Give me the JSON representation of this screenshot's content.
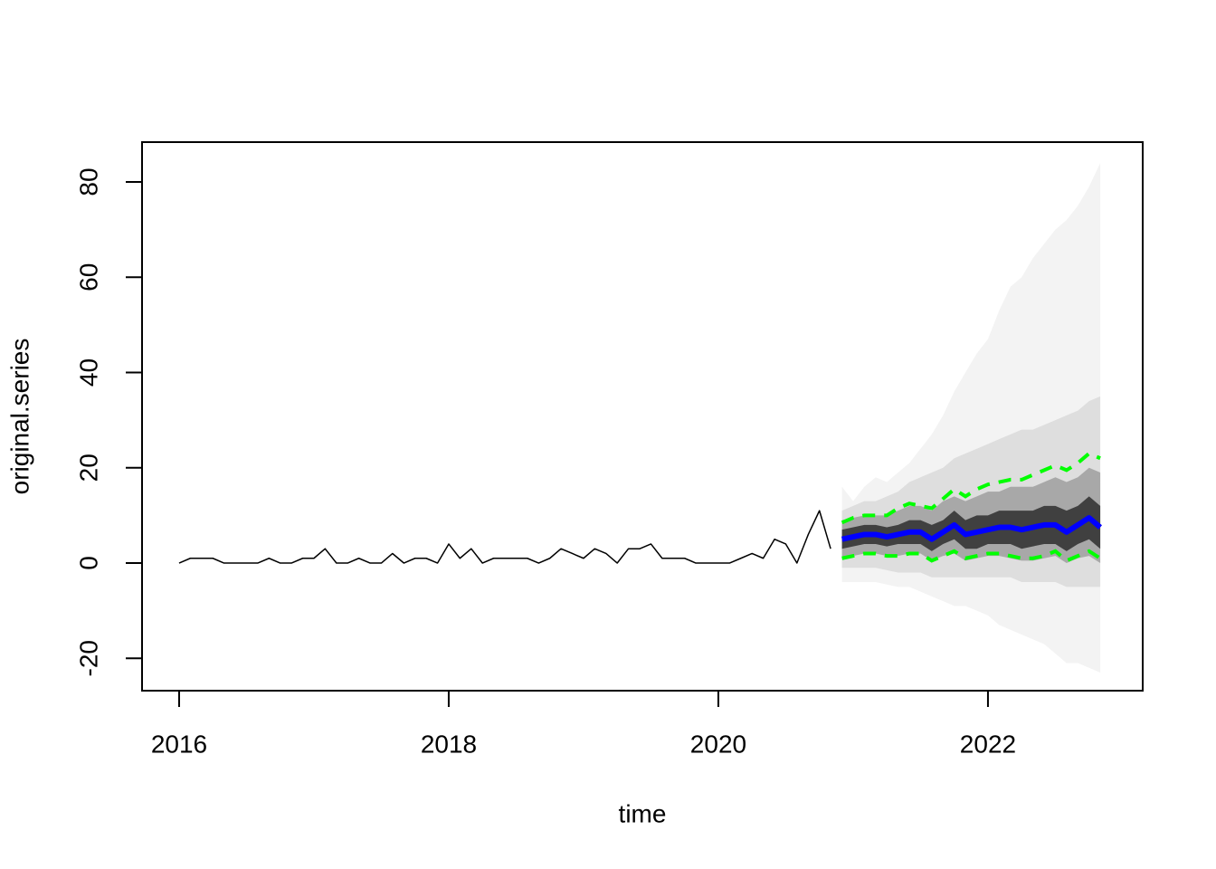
{
  "chart_data": {
    "type": "line",
    "xlabel": "time",
    "ylabel": "original.series",
    "xlim": [
      2015.725,
      2023.148
    ],
    "ylim": [
      -26.79,
      88.36
    ],
    "xticks": [
      2016,
      2018,
      2020,
      2022
    ],
    "yticks": [
      -20,
      0,
      20,
      40,
      60,
      80
    ],
    "series": [
      {
        "color": "#000000",
        "lwd": 1.5,
        "x": [
          2016,
          2016.083,
          2016.167,
          2016.25,
          2016.333,
          2016.417,
          2016.5,
          2016.583,
          2016.667,
          2016.75,
          2016.833,
          2016.917,
          2017,
          2017.083,
          2017.167,
          2017.25,
          2017.333,
          2017.417,
          2017.5,
          2017.583,
          2017.667,
          2017.75,
          2017.833,
          2017.917,
          2018,
          2018.083,
          2018.167,
          2018.25,
          2018.333,
          2018.417,
          2018.5,
          2018.583,
          2018.667,
          2018.75,
          2018.833,
          2018.917,
          2019,
          2019.083,
          2019.167,
          2019.25,
          2019.333,
          2019.417,
          2019.5,
          2019.583,
          2019.667,
          2019.75,
          2019.833,
          2019.917,
          2020,
          2020.083,
          2020.167,
          2020.25,
          2020.333,
          2020.417,
          2020.5,
          2020.583,
          2020.667,
          2020.75,
          2020.833
        ],
        "values": [
          0,
          1,
          1,
          1,
          0,
          0,
          0,
          0,
          1,
          0,
          0,
          1,
          1,
          3,
          0,
          0,
          1,
          0,
          0,
          2,
          0,
          1,
          1,
          0,
          4,
          1,
          3,
          0,
          1,
          1,
          1,
          1,
          0,
          1,
          3,
          2,
          1,
          3,
          2,
          0,
          3,
          3,
          4,
          1,
          1,
          1,
          0,
          0,
          0,
          0,
          1,
          2,
          1,
          5,
          4,
          0,
          6,
          11,
          3
        ]
      }
    ],
    "forecast": {
      "x": [
        2020.917,
        2021,
        2021.083,
        2021.167,
        2021.25,
        2021.333,
        2021.417,
        2021.5,
        2021.583,
        2021.667,
        2021.75,
        2021.833,
        2021.917,
        2022,
        2022.083,
        2022.167,
        2022.25,
        2022.333,
        2022.417,
        2022.5,
        2022.583,
        2022.667,
        2022.75,
        2022.833
      ],
      "bands": [
        {
          "color": "#f3f3f3",
          "upper": [
            16,
            13,
            16,
            18,
            17,
            19,
            21,
            24,
            27,
            31,
            36,
            40,
            44,
            47,
            53,
            58,
            60,
            64,
            67,
            70,
            72,
            75,
            79,
            84
          ],
          "lower": [
            -4,
            -4,
            -4,
            -4,
            -4.5,
            -5,
            -5,
            -6,
            -7,
            -8,
            -9,
            -9,
            -10,
            -11,
            -13,
            -14,
            -15,
            -16,
            -17,
            -19,
            -21,
            -21,
            -22,
            -23
          ]
        },
        {
          "color": "#dedede",
          "upper": [
            11,
            12,
            13,
            13,
            14,
            15,
            17,
            18,
            19,
            20,
            22,
            23,
            24,
            25,
            26,
            27,
            28,
            28,
            29,
            30,
            31,
            32,
            34,
            35
          ],
          "lower": [
            -1,
            -1,
            -1,
            -1,
            -1.5,
            -2,
            -2,
            -2,
            -3,
            -3,
            -3,
            -3,
            -3,
            -3,
            -3,
            -3,
            -4,
            -4,
            -4,
            -4,
            -5,
            -5,
            -5,
            -5
          ]
        },
        {
          "color": "#a8a8a8",
          "upper": [
            9,
            9.5,
            10,
            10,
            10,
            11,
            12,
            12,
            11,
            13,
            14,
            13,
            14,
            15,
            15,
            16,
            16,
            16,
            17,
            18,
            17,
            18,
            20,
            19
          ],
          "lower": [
            1,
            1.5,
            2,
            2,
            1.5,
            1.5,
            2,
            2,
            0.5,
            1.5,
            2,
            0.5,
            1,
            1.5,
            1.5,
            1,
            0.5,
            0.5,
            1,
            1.5,
            0,
            1,
            1.5,
            0
          ]
        },
        {
          "color": "#404040",
          "upper": [
            7,
            7.5,
            8,
            8,
            7.5,
            8,
            9,
            9,
            8,
            9,
            11,
            9,
            10,
            10,
            11,
            11,
            11,
            11,
            12,
            12,
            11,
            12,
            14,
            12
          ],
          "lower": [
            3,
            3.5,
            4,
            4,
            3.5,
            4,
            4,
            4,
            2.5,
            4,
            5,
            3,
            3,
            4,
            4,
            4,
            3,
            3.5,
            4,
            4,
            2.5,
            4,
            5,
            3
          ]
        }
      ],
      "bounds": [
        {
          "color": "#00ff00",
          "lwd": 4,
          "dashed": true,
          "values": [
            8.5,
            9.5,
            10,
            10,
            10,
            11.5,
            12.5,
            12,
            11.5,
            13.5,
            15.5,
            14,
            15.5,
            16.5,
            17,
            17.5,
            17.5,
            18.5,
            19.5,
            20.5,
            19.5,
            21,
            23,
            22
          ]
        },
        {
          "color": "#00ff00",
          "lwd": 4,
          "dashed": true,
          "values": [
            1,
            1.5,
            2,
            2,
            1.5,
            1.5,
            2,
            2,
            0.5,
            1.5,
            2.5,
            1,
            1.5,
            2,
            2,
            1.5,
            1,
            1,
            1.5,
            2.5,
            0.5,
            1.5,
            2.5,
            1
          ]
        }
      ],
      "mean": {
        "color": "#0000ff",
        "lwd": 6,
        "values": [
          5,
          5.5,
          6,
          6,
          5.5,
          6,
          6.5,
          6.5,
          5,
          6.5,
          8,
          6,
          6.5,
          7,
          7.5,
          7.5,
          7,
          7.5,
          8,
          8,
          6.5,
          8,
          9.5,
          7.5
        ]
      }
    }
  }
}
